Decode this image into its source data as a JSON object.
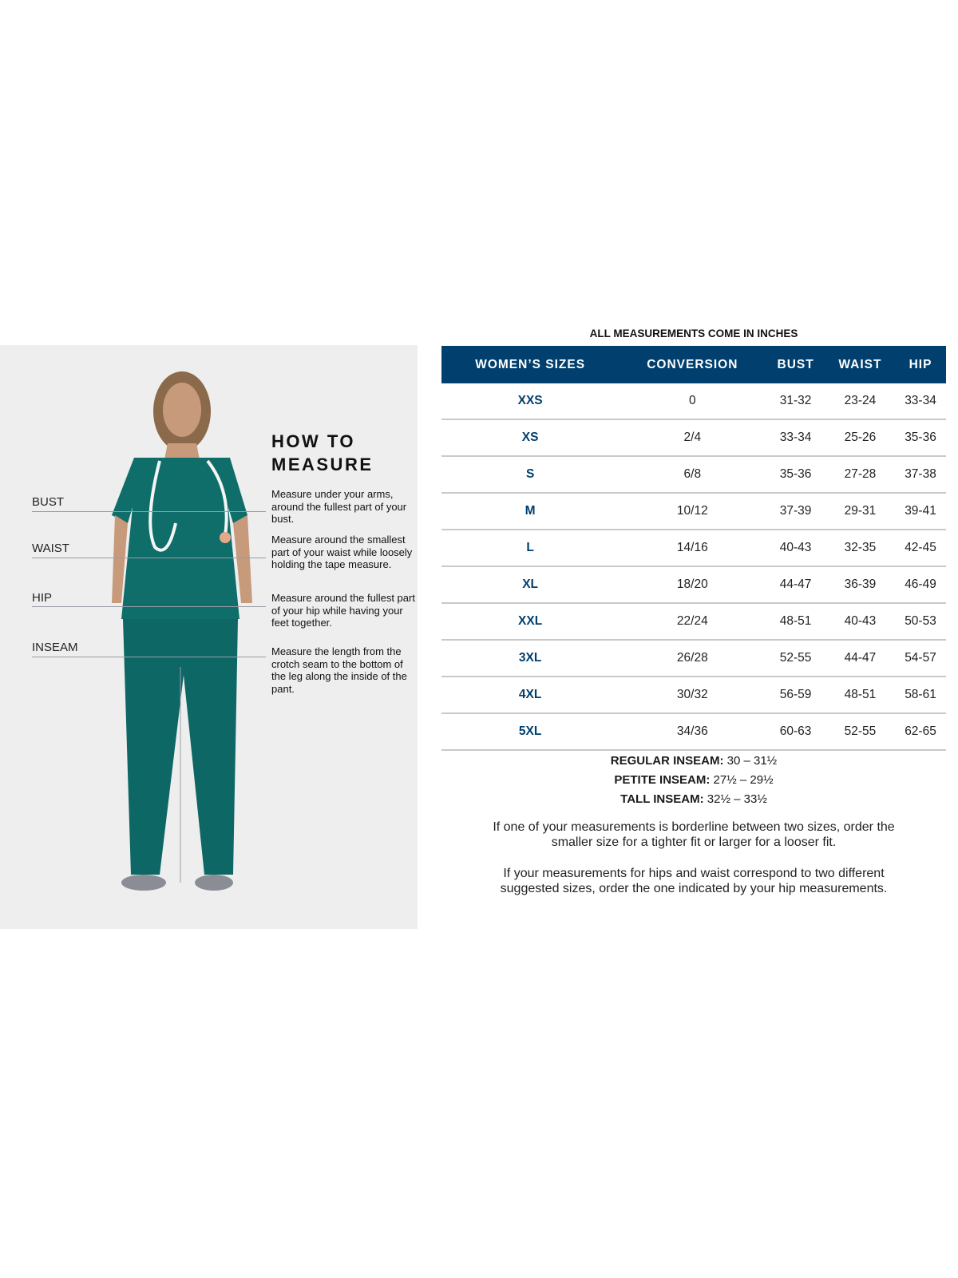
{
  "caption": "ALL MEASUREMENTS COME IN INCHES",
  "how_to": {
    "title_line1": "HOW TO",
    "title_line2": "MEASURE",
    "items": [
      {
        "label": "BUST",
        "text": "Measure under your arms, around the fullest part of your bust."
      },
      {
        "label": "WAIST",
        "text": "Measure around the smallest part of your waist while loosely holding the tape measure."
      },
      {
        "label": "HIP",
        "text": "Measure around the fullest part of your hip while having your feet together."
      },
      {
        "label": "INSEAM",
        "text": "Measure the length from the crotch seam to the bottom of the leg along the inside of the pant."
      }
    ]
  },
  "table": {
    "headers": [
      "WOMEN’S SIZES",
      "CONVERSION",
      "BUST",
      "WAIST",
      "HIP"
    ],
    "rows": [
      [
        "XXS",
        "0",
        "31-32",
        "23-24",
        "33-34"
      ],
      [
        "XS",
        "2/4",
        "33-34",
        "25-26",
        "35-36"
      ],
      [
        "S",
        "6/8",
        "35-36",
        "27-28",
        "37-38"
      ],
      [
        "M",
        "10/12",
        "37-39",
        "29-31",
        "39-41"
      ],
      [
        "L",
        "14/16",
        "40-43",
        "32-35",
        "42-45"
      ],
      [
        "XL",
        "18/20",
        "44-47",
        "36-39",
        "46-49"
      ],
      [
        "XXL",
        "22/24",
        "48-51",
        "40-43",
        "50-53"
      ],
      [
        "3XL",
        "26/28",
        "52-55",
        "44-47",
        "54-57"
      ],
      [
        "4XL",
        "30/32",
        "56-59",
        "48-51",
        "58-61"
      ],
      [
        "5XL",
        "34/36",
        "60-63",
        "52-55",
        "62-65"
      ]
    ],
    "header_color": "#003f6e"
  },
  "inseams": [
    {
      "label": "REGULAR INSEAM:",
      "value": "30  – 31½"
    },
    {
      "label": "PETITE INSEAM:",
      "value": "27½ – 29½"
    },
    {
      "label": "TALL INSEAM:",
      "value": "32½ – 33½"
    }
  ],
  "notes": [
    "If one of your measurements is borderline between two sizes, order the smaller size for a tighter fit or larger for a looser fit.",
    "If your measurements for hips and waist correspond to two different suggested sizes, order the one indicated by your hip measurements."
  ]
}
